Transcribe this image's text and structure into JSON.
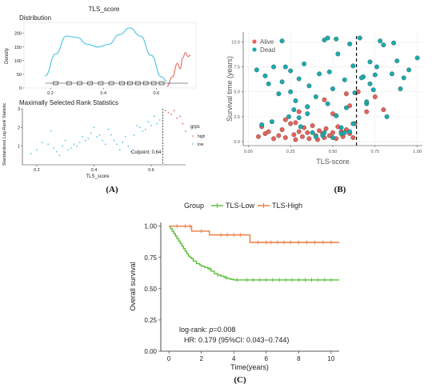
{
  "panel_labels": [
    "(A)",
    "(B)",
    "(C)"
  ],
  "colors": {
    "low": "#56c7e3",
    "high": "#e8756c",
    "alive": "#e5625a",
    "dead": "#1aabad",
    "km_low": "#5bbf3c",
    "km_high": "#f07b3f"
  },
  "chart_data": [
    {
      "type": "line",
      "title": "TLS_score",
      "subtitle": "Distribution",
      "ylabel": "Density",
      "xlim": [
        0.1,
        0.75
      ],
      "ylim": [
        0,
        240
      ],
      "y_ticks": [
        0,
        50,
        100,
        150,
        200
      ],
      "x_ticks": [
        0.2,
        0.4,
        0.6
      ],
      "series": [
        {
          "name": "low",
          "x": [
            0.18,
            0.22,
            0.26,
            0.3,
            0.34,
            0.38,
            0.42,
            0.46,
            0.5,
            0.54,
            0.58,
            0.62,
            0.64
          ],
          "y": [
            45,
            125,
            190,
            185,
            160,
            150,
            160,
            195,
            220,
            190,
            120,
            40,
            25
          ]
        },
        {
          "name": "high",
          "x": [
            0.64,
            0.66,
            0.68,
            0.69,
            0.7,
            0.71,
            0.72,
            0.73
          ],
          "y": [
            5,
            40,
            90,
            70,
            110,
            130,
            115,
            120
          ]
        }
      ]
    },
    {
      "type": "scatter",
      "title": "Maximally Selected Rank Statistics",
      "xlabel": "TLS_score",
      "ylabel": "Standardized Log-Rank Statistic",
      "x_ticks": [
        0.2,
        0.4,
        0.6
      ],
      "xlim": [
        0.15,
        0.72
      ],
      "ylim": [
        0,
        3
      ],
      "y_ticks": [
        1,
        2,
        3
      ],
      "cutpoint": 0.64,
      "cutpoint_label": "Cutpoint: 0.64",
      "legend_title": "grps",
      "legend": [
        "high",
        "low"
      ],
      "series": [
        {
          "name": "low",
          "x": [
            0.18,
            0.2,
            0.22,
            0.24,
            0.25,
            0.26,
            0.27,
            0.28,
            0.29,
            0.3,
            0.31,
            0.32,
            0.33,
            0.34,
            0.35,
            0.36,
            0.37,
            0.38,
            0.39,
            0.4,
            0.41,
            0.42,
            0.43,
            0.44,
            0.45,
            0.46,
            0.47,
            0.48,
            0.49,
            0.5,
            0.51,
            0.52,
            0.53,
            0.54,
            0.55,
            0.56,
            0.57,
            0.58,
            0.59,
            0.6,
            0.61,
            0.62,
            0.63
          ],
          "y": [
            0.6,
            0.8,
            1.2,
            1.1,
            1.8,
            0.9,
            0.7,
            0.5,
            1.0,
            1.3,
            0.8,
            0.9,
            1.1,
            1.0,
            1.2,
            1.5,
            1.3,
            1.4,
            1.7,
            2.0,
            1.5,
            1.6,
            1.3,
            1.1,
            1.9,
            1.6,
            1.3,
            1.1,
            0.8,
            1.2,
            1.5,
            1.0,
            0.7,
            1.6,
            2.1,
            2.0,
            1.8,
            1.9,
            2.3,
            2.1,
            2.6,
            2.2,
            2.4
          ]
        },
        {
          "name": "high",
          "x": [
            0.65,
            0.66,
            0.67,
            0.68,
            0.69,
            0.7,
            0.71,
            0.72
          ],
          "y": [
            2.9,
            2.8,
            2.7,
            2.9,
            2.5,
            2.6,
            2.2,
            1.8
          ]
        }
      ]
    },
    {
      "type": "scatter",
      "xlabel": "TLS-score",
      "ylabel": "Survival time (years)",
      "xlim": [
        -0.03,
        1.03
      ],
      "ylim": [
        -0.4,
        11.0
      ],
      "x_ticks": [
        0.0,
        0.25,
        0.5,
        0.75,
        1.0
      ],
      "y_ticks": [
        0.0,
        2.5,
        5.0,
        7.5,
        10.0
      ],
      "cutpoint": 0.64,
      "legend": [
        "Alive",
        "Dead"
      ],
      "series": [
        {
          "name": "Alive",
          "x": [
            0.06,
            0.08,
            0.1,
            0.12,
            0.15,
            0.18,
            0.2,
            0.22,
            0.25,
            0.27,
            0.28,
            0.3,
            0.32,
            0.33,
            0.35,
            0.36,
            0.38,
            0.4,
            0.41,
            0.42,
            0.44,
            0.45,
            0.46,
            0.48,
            0.5,
            0.52,
            0.53,
            0.55,
            0.56,
            0.58,
            0.6,
            0.62,
            0.63,
            0.22,
            0.3,
            0.35,
            0.45,
            0.5,
            0.6,
            0.28,
            0.52,
            0.58,
            0.65,
            0.7,
            0.75,
            0.8
          ],
          "y": [
            0.5,
            1.5,
            0.8,
            1.0,
            0.3,
            0.6,
            1.2,
            0.4,
            1.8,
            0.7,
            0.2,
            1.0,
            0.5,
            1.4,
            0.9,
            0.3,
            1.6,
            0.6,
            0.2,
            1.1,
            0.8,
            0.4,
            1.3,
            0.6,
            0.9,
            0.3,
            1.5,
            1.0,
            0.5,
            1.2,
            0.8,
            0.4,
            1.8,
            2.2,
            3.0,
            3.5,
            4.2,
            2.8,
            3.6,
            1.9,
            2.6,
            4.8,
            5.0,
            3.0,
            4.5,
            3.2
          ]
        },
        {
          "name": "Dead",
          "x": [
            0.05,
            0.08,
            0.1,
            0.12,
            0.14,
            0.15,
            0.18,
            0.2,
            0.22,
            0.24,
            0.25,
            0.27,
            0.28,
            0.3,
            0.31,
            0.33,
            0.35,
            0.36,
            0.38,
            0.4,
            0.42,
            0.44,
            0.45,
            0.47,
            0.48,
            0.5,
            0.52,
            0.53,
            0.55,
            0.57,
            0.58,
            0.6,
            0.62,
            0.63,
            0.66,
            0.68,
            0.7,
            0.72,
            0.74,
            0.76,
            0.78,
            0.8,
            0.82,
            0.85,
            0.88,
            0.9,
            0.92,
            0.95,
            1.0,
            0.4,
            0.45,
            0.5,
            0.55,
            0.6,
            0.7,
            0.72,
            0.3,
            0.35,
            0.25,
            0.62,
            0.2,
            0.57,
            0.67,
            0.75,
            0.86,
            0.47,
            0.52
          ],
          "y": [
            7.2,
            1.7,
            6.6,
            5.8,
            2.0,
            7.5,
            4.8,
            6.0,
            7.5,
            2.5,
            7.1,
            3.2,
            4.1,
            6.3,
            1.5,
            7.8,
            2.8,
            5.6,
            0.9,
            4.5,
            6.8,
            0.6,
            10.2,
            3.8,
            7.0,
            5.3,
            2.6,
            8.8,
            1.4,
            6.2,
            3.4,
            9.8,
            7.6,
            4.9,
            10.4,
            6.5,
            3.8,
            8.0,
            5.2,
            7.5,
            10.1,
            9.7,
            2.5,
            6.8,
            8.1,
            5.3,
            6.4,
            7.2,
            8.4,
            0.5,
            0.9,
            0.4,
            0.8,
            1.0,
            4.0,
            5.8,
            2.4,
            3.5,
            5.0,
            1.8,
            10.1,
            0.9,
            6.4,
            6.7,
            9.9,
            10.4,
            10.3
          ]
        }
      ]
    },
    {
      "type": "line",
      "legend_title": "Group",
      "legend": [
        "TLS-Low",
        "TLS-High"
      ],
      "xlabel": "Time(years)",
      "ylabel": "Overall survival",
      "xlim": [
        -0.5,
        10.5
      ],
      "ylim": [
        0,
        1.03
      ],
      "x_ticks": [
        0,
        2,
        4,
        6,
        8,
        10
      ],
      "y_ticks": [
        0.0,
        0.25,
        0.5,
        0.75,
        1.0
      ],
      "annotation": {
        "line1_prefix": "log-rank: ",
        "line1_p": "p",
        "line1_suffix": "=0.008",
        "line2": "HR: 0.179 (95%CI: 0.043−0.744)"
      },
      "series": [
        {
          "name": "TLS-Low",
          "x": [
            0,
            0.1,
            0.2,
            0.3,
            0.4,
            0.5,
            0.6,
            0.7,
            0.8,
            0.9,
            1.0,
            1.1,
            1.2,
            1.3,
            1.4,
            1.5,
            1.7,
            1.9,
            2.0,
            2.2,
            2.4,
            2.6,
            2.8,
            3.0,
            3.2,
            3.4,
            3.6,
            3.8,
            4.0,
            10.5
          ],
          "y": [
            1.0,
            0.98,
            0.96,
            0.94,
            0.92,
            0.9,
            0.88,
            0.86,
            0.84,
            0.82,
            0.8,
            0.78,
            0.76,
            0.75,
            0.74,
            0.72,
            0.7,
            0.69,
            0.68,
            0.67,
            0.66,
            0.64,
            0.62,
            0.61,
            0.6,
            0.59,
            0.58,
            0.575,
            0.57,
            0.57
          ]
        },
        {
          "name": "TLS-High",
          "x": [
            0,
            1.4,
            2.5,
            5.0,
            10.5
          ],
          "y": [
            1.0,
            0.96,
            0.93,
            0.87,
            0.87
          ]
        }
      ],
      "censor_marks": {
        "TLS-Low": [
          2.5,
          3.0,
          3.5,
          4.2,
          4.8,
          5.2,
          5.6,
          6.0,
          6.4,
          6.8,
          7.2,
          7.6,
          8.0,
          8.4,
          8.8,
          9.2,
          9.6,
          10.0
        ],
        "TLS-High": [
          0.5,
          1.0,
          1.3,
          2.0,
          3.2,
          3.6,
          4.0,
          4.4,
          5.5,
          6.0,
          6.3,
          6.7,
          7.1,
          7.5,
          8.0,
          8.5,
          9.0,
          9.5,
          10.0
        ]
      }
    }
  ]
}
